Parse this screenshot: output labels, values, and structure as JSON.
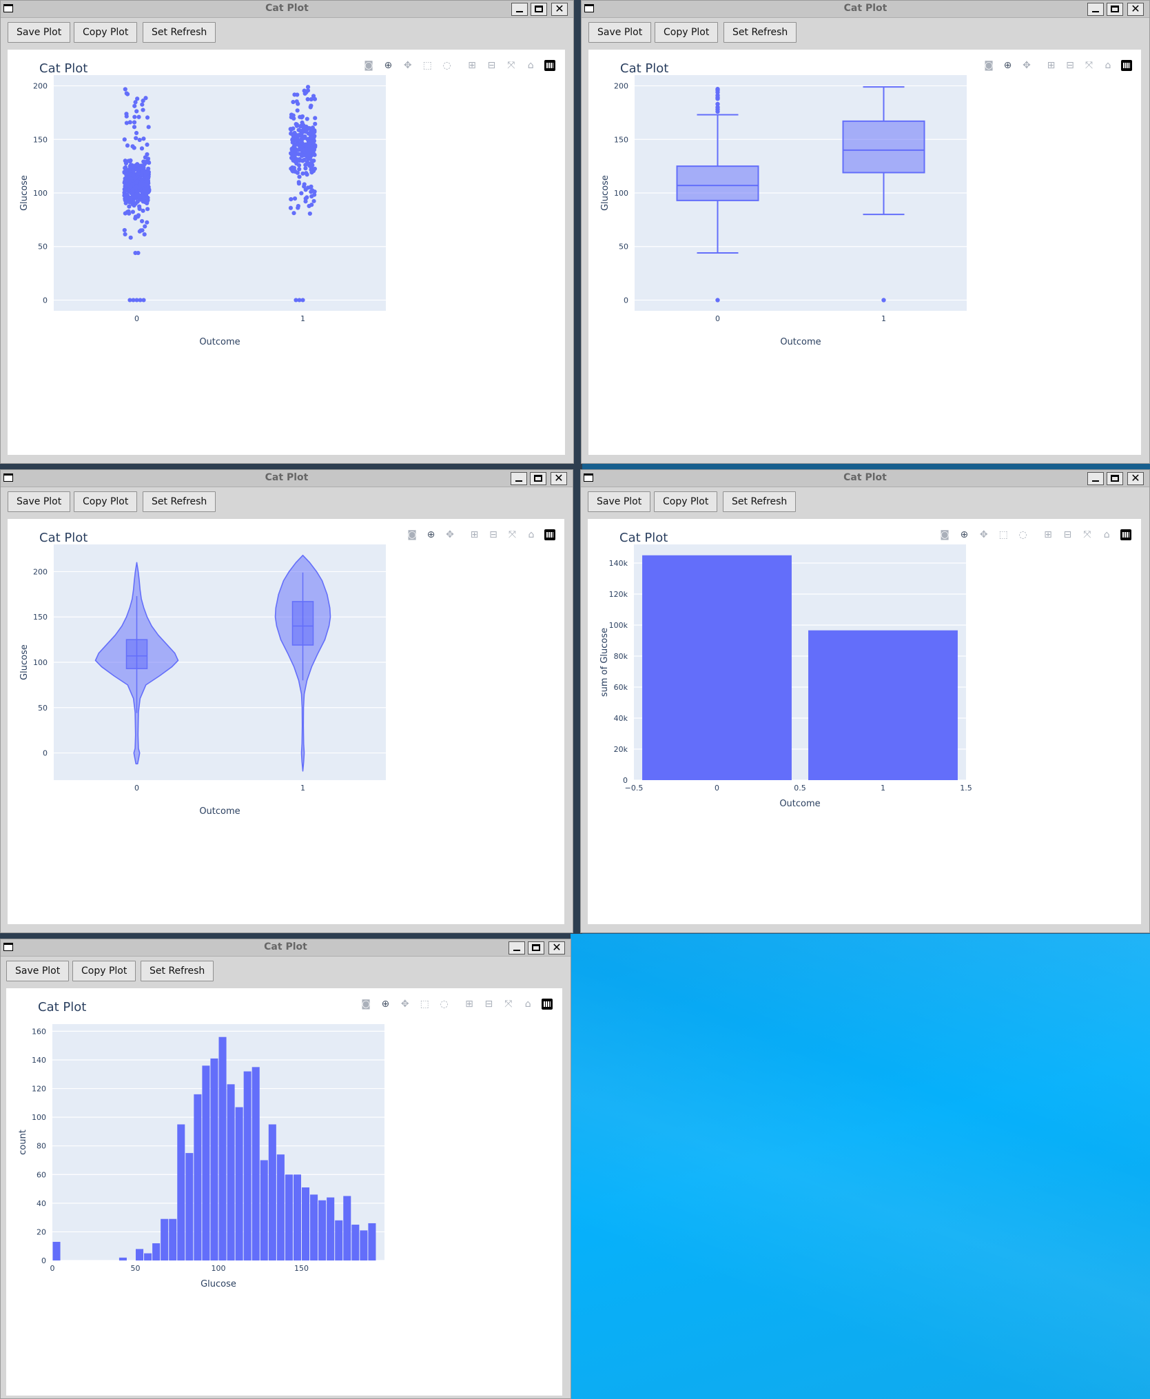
{
  "windows": [
    {
      "id": "w1",
      "title": "Cat Plot",
      "buttons": [
        "Save Plot",
        "Copy Plot",
        "Set Refresh"
      ],
      "plot_title": "Cat Plot"
    },
    {
      "id": "w2",
      "title": "Cat Plot",
      "buttons": [
        "Save Plot",
        "Copy Plot",
        "Set Refresh"
      ],
      "plot_title": "Cat Plot"
    },
    {
      "id": "w3",
      "title": "Cat Plot",
      "buttons": [
        "Save Plot",
        "Copy Plot",
        "Set Refresh"
      ],
      "plot_title": "Cat Plot"
    },
    {
      "id": "w4",
      "title": "Cat Plot",
      "buttons": [
        "Save Plot",
        "Copy Plot",
        "Set Refresh"
      ],
      "plot_title": "Cat Plot"
    },
    {
      "id": "w5",
      "title": "Cat Plot",
      "buttons": [
        "Save Plot",
        "Copy Plot",
        "Set Refresh"
      ],
      "plot_title": "Cat Plot"
    }
  ],
  "window_controls": {
    "close_label": "✕"
  },
  "modebar_icons": {
    "w1": [
      "camera-icon",
      "zoom-icon",
      "pan-icon",
      "box-select-icon",
      "lasso-icon",
      "zoom-in-icon",
      "zoom-out-icon",
      "autoscale-icon",
      "reset-axes-icon",
      "plotly-logo-icon"
    ],
    "w2": [
      "camera-icon",
      "zoom-icon",
      "pan-icon",
      "zoom-in-icon",
      "zoom-out-icon",
      "autoscale-icon",
      "reset-axes-icon",
      "plotly-logo-icon"
    ],
    "w3": [
      "camera-icon",
      "zoom-icon",
      "pan-icon",
      "zoom-in-icon",
      "zoom-out-icon",
      "autoscale-icon",
      "reset-axes-icon",
      "plotly-logo-icon"
    ],
    "w4": [
      "camera-icon",
      "zoom-icon",
      "pan-icon",
      "box-select-icon",
      "lasso-icon",
      "zoom-in-icon",
      "zoom-out-icon",
      "autoscale-icon",
      "reset-axes-icon",
      "plotly-logo-icon"
    ],
    "w5": [
      "camera-icon",
      "zoom-icon",
      "pan-icon",
      "box-select-icon",
      "lasso-icon",
      "zoom-in-icon",
      "zoom-out-icon",
      "autoscale-icon",
      "reset-axes-icon",
      "plotly-logo-icon"
    ]
  },
  "colors": {
    "marker": "#636efa",
    "plot_bg": "#e5ecf6",
    "axis_text": "#2a3f5f",
    "box_fill": "rgba(99,110,250,0.5)"
  },
  "chart_data": [
    {
      "type": "scatter",
      "title": "Cat Plot",
      "xlabel": "Outcome",
      "ylabel": "Glucose",
      "categories": [
        "0",
        "1"
      ],
      "ylim": [
        -10,
        210
      ],
      "yticks": [
        0,
        50,
        100,
        150,
        200
      ],
      "series": [
        {
          "category": "0",
          "bulk_range": [
            57,
            199
          ],
          "dense_range": [
            75,
            165
          ],
          "isolated_values": [
            44,
            44
          ],
          "zero_values": [
            0,
            0,
            0,
            0,
            0
          ]
        },
        {
          "category": "1",
          "bulk_range": [
            80,
            199
          ],
          "dense_range": [
            95,
            199
          ],
          "zero_values": [
            0,
            0,
            0
          ]
        }
      ]
    },
    {
      "type": "box",
      "title": "Cat Plot",
      "xlabel": "Outcome",
      "ylabel": "Glucose",
      "categories": [
        "0",
        "1"
      ],
      "ylim": [
        -10,
        210
      ],
      "yticks": [
        0,
        50,
        100,
        150,
        200
      ],
      "series": [
        {
          "category": "0",
          "lowerfence": 44,
          "q1": 93,
          "median": 107,
          "q3": 125,
          "upperfence": 173,
          "outliers": [
            0,
            176,
            178,
            180,
            183,
            188,
            189,
            191,
            194,
            196,
            197
          ]
        },
        {
          "category": "1",
          "lowerfence": 80,
          "q1": 119,
          "median": 140,
          "q3": 167,
          "upperfence": 199,
          "outliers": [
            0
          ]
        }
      ]
    },
    {
      "type": "violin",
      "title": "Cat Plot",
      "xlabel": "Outcome",
      "ylabel": "Glucose",
      "categories": [
        "0",
        "1"
      ],
      "ylim": [
        -30,
        230
      ],
      "yticks": [
        0,
        50,
        100,
        150,
        200
      ],
      "series": [
        {
          "category": "0",
          "span": [
            -12,
            210
          ],
          "q1": 93,
          "median": 107,
          "q3": 125,
          "whisker": [
            44,
            173
          ],
          "density": [
            [
              -12,
              0.02
            ],
            [
              -5,
              0.05
            ],
            [
              0,
              0.07
            ],
            [
              5,
              0.04
            ],
            [
              20,
              0.03
            ],
            [
              45,
              0.04
            ],
            [
              60,
              0.08
            ],
            [
              75,
              0.22
            ],
            [
              85,
              0.55
            ],
            [
              95,
              0.85
            ],
            [
              102,
              1.0
            ],
            [
              110,
              0.92
            ],
            [
              120,
              0.72
            ],
            [
              130,
              0.52
            ],
            [
              140,
              0.36
            ],
            [
              150,
              0.25
            ],
            [
              160,
              0.17
            ],
            [
              170,
              0.11
            ],
            [
              180,
              0.08
            ],
            [
              190,
              0.06
            ],
            [
              200,
              0.035
            ],
            [
              210,
              0.0
            ]
          ]
        },
        {
          "category": "1",
          "span": [
            -20,
            218
          ],
          "q1": 119,
          "median": 140,
          "q3": 167,
          "whisker": [
            80,
            199
          ],
          "density": [
            [
              -20,
              0.0
            ],
            [
              -10,
              0.03
            ],
            [
              0,
              0.05
            ],
            [
              10,
              0.03
            ],
            [
              30,
              0.02
            ],
            [
              50,
              0.025
            ],
            [
              65,
              0.05
            ],
            [
              80,
              0.15
            ],
            [
              95,
              0.32
            ],
            [
              110,
              0.55
            ],
            [
              125,
              0.8
            ],
            [
              140,
              0.95
            ],
            [
              150,
              1.0
            ],
            [
              160,
              0.98
            ],
            [
              175,
              0.88
            ],
            [
              190,
              0.7
            ],
            [
              200,
              0.5
            ],
            [
              210,
              0.25
            ],
            [
              218,
              0.0
            ]
          ]
        }
      ]
    },
    {
      "type": "bar",
      "title": "Cat Plot",
      "xlabel": "Outcome",
      "ylabel": "sum of Glucose",
      "x": [
        0,
        1
      ],
      "values": [
        145000,
        96600
      ],
      "xlim": [
        -0.5,
        1.5
      ],
      "ylim": [
        0,
        152000
      ],
      "xticks": [
        -0.5,
        0,
        0.5,
        1,
        1.5
      ],
      "xtick_labels": [
        "−0.5",
        "0",
        "0.5",
        "1",
        "1.5"
      ],
      "yticks": [
        0,
        20000,
        40000,
        60000,
        80000,
        100000,
        120000,
        140000
      ],
      "ytick_labels": [
        "0",
        "20k",
        "40k",
        "60k",
        "80k",
        "100k",
        "120k",
        "140k"
      ]
    },
    {
      "type": "bar",
      "subtype": "histogram",
      "title": "Cat Plot",
      "xlabel": "Glucose",
      "ylabel": "count",
      "bin_width": 5,
      "bin_start": 0,
      "xlim": [
        0,
        200
      ],
      "ylim": [
        0,
        165
      ],
      "xticks": [
        0,
        50,
        100,
        150
      ],
      "yticks": [
        0,
        20,
        40,
        60,
        80,
        100,
        120,
        140,
        160
      ],
      "values": [
        13,
        0,
        0,
        0,
        0,
        0,
        0,
        0,
        2,
        0,
        8,
        5,
        12,
        29,
        29,
        95,
        75,
        116,
        136,
        141,
        156,
        123,
        107,
        132,
        135,
        70,
        95,
        74,
        60,
        60,
        51,
        46,
        42,
        44,
        28,
        45,
        25,
        21,
        26
      ]
    }
  ]
}
